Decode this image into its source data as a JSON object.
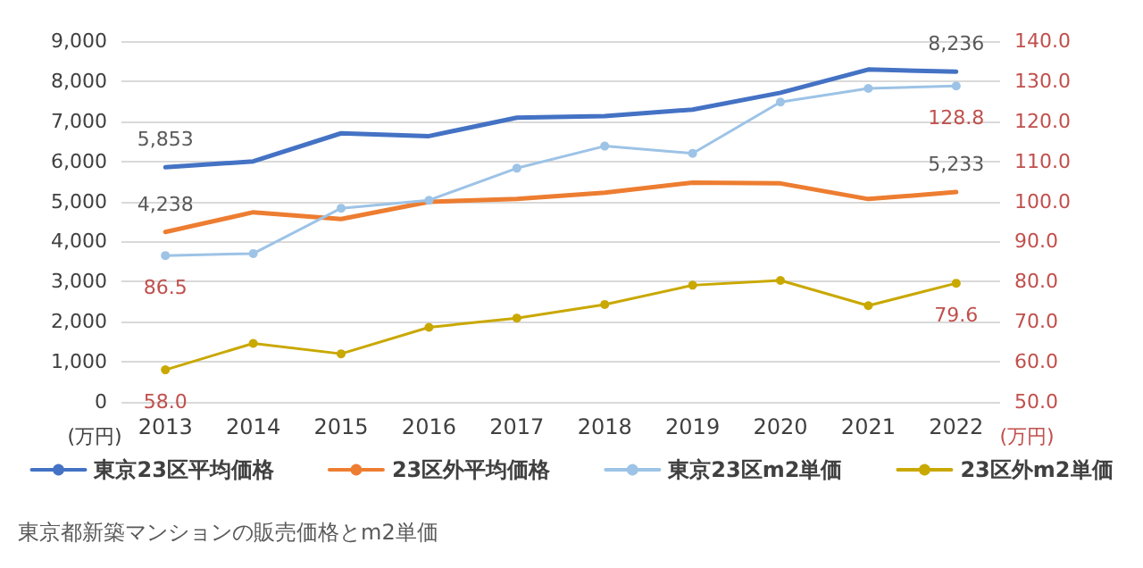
{
  "chart_data": {
    "type": "line",
    "categories": [
      "2013",
      "2014",
      "2015",
      "2016",
      "2017",
      "2018",
      "2019",
      "2020",
      "2021",
      "2022"
    ],
    "series": [
      {
        "name": "東京23区平均価格",
        "color": "#4472c4",
        "marker": "none",
        "values": [
          5853,
          6000,
          6700,
          6630,
          7090,
          7130,
          7290,
          7710,
          8290,
          8236
        ],
        "value_labels": [
          "5,853",
          null,
          null,
          null,
          null,
          null,
          null,
          null,
          null,
          "8,236"
        ]
      },
      {
        "name": "23区外平均価格",
        "color": "#ed7d31",
        "marker": "none",
        "values": [
          4238,
          4730,
          4560,
          4990,
          5060,
          5220,
          5470,
          5450,
          5060,
          5233
        ],
        "value_labels": [
          "4,238",
          null,
          null,
          null,
          null,
          null,
          null,
          null,
          null,
          "5,233"
        ]
      },
      {
        "name": "東京23区m2単価",
        "color": "#9dc3e6",
        "marker": "circle",
        "axis": "y2",
        "values": [
          86.5,
          87.0,
          98.3,
          100.3,
          108.3,
          113.8,
          112.0,
          124.8,
          128.2,
          128.8
        ],
        "value_labels": [
          "86.5",
          null,
          null,
          null,
          null,
          null,
          null,
          null,
          null,
          "128.8"
        ]
      },
      {
        "name": "23区外m2単価",
        "color": "#c9a800",
        "marker": "circle",
        "axis": "y2",
        "values": [
          58.0,
          64.6,
          62.0,
          68.6,
          70.9,
          74.3,
          79.1,
          80.3,
          74.0,
          79.6
        ],
        "value_labels": [
          "58.0",
          null,
          null,
          null,
          null,
          null,
          null,
          null,
          null,
          "79.6"
        ]
      }
    ],
    "ylabel": "(万円)",
    "y2label": "(万円)",
    "ylim": [
      0,
      9000
    ],
    "yticks": [
      0,
      {
        "value": 1000,
        "label": "1,000"
      },
      {
        "value": 2000,
        "label": "2,000"
      },
      {
        "value": 3000,
        "label": "3,000"
      },
      {
        "value": 4000,
        "label": "4,000"
      },
      {
        "value": 5000,
        "label": "5,000"
      },
      {
        "value": 6000,
        "label": "6,000"
      },
      {
        "value": 7000,
        "label": "7,000"
      },
      {
        "value": 8000,
        "label": "8,000"
      },
      {
        "value": 9000,
        "label": "9,000"
      }
    ],
    "y2lim": [
      50,
      140
    ],
    "y2ticks": [
      {
        "value": 50,
        "label": "50.0"
      },
      {
        "value": 60,
        "label": "60.0"
      },
      {
        "value": 70,
        "label": "70.0"
      },
      {
        "value": 80,
        "label": "80.0"
      },
      {
        "value": 90,
        "label": "90.0"
      },
      {
        "value": 100,
        "label": "100.0"
      },
      {
        "value": 110,
        "label": "110.0"
      },
      {
        "value": 120,
        "label": "120.0"
      },
      {
        "value": 130,
        "label": "130.0"
      },
      {
        "value": 140,
        "label": "140.0"
      }
    ],
    "grid": "y",
    "legend": "bottom",
    "annotations": [
      "東京都新築マンションの販売価格とm2単価"
    ]
  }
}
